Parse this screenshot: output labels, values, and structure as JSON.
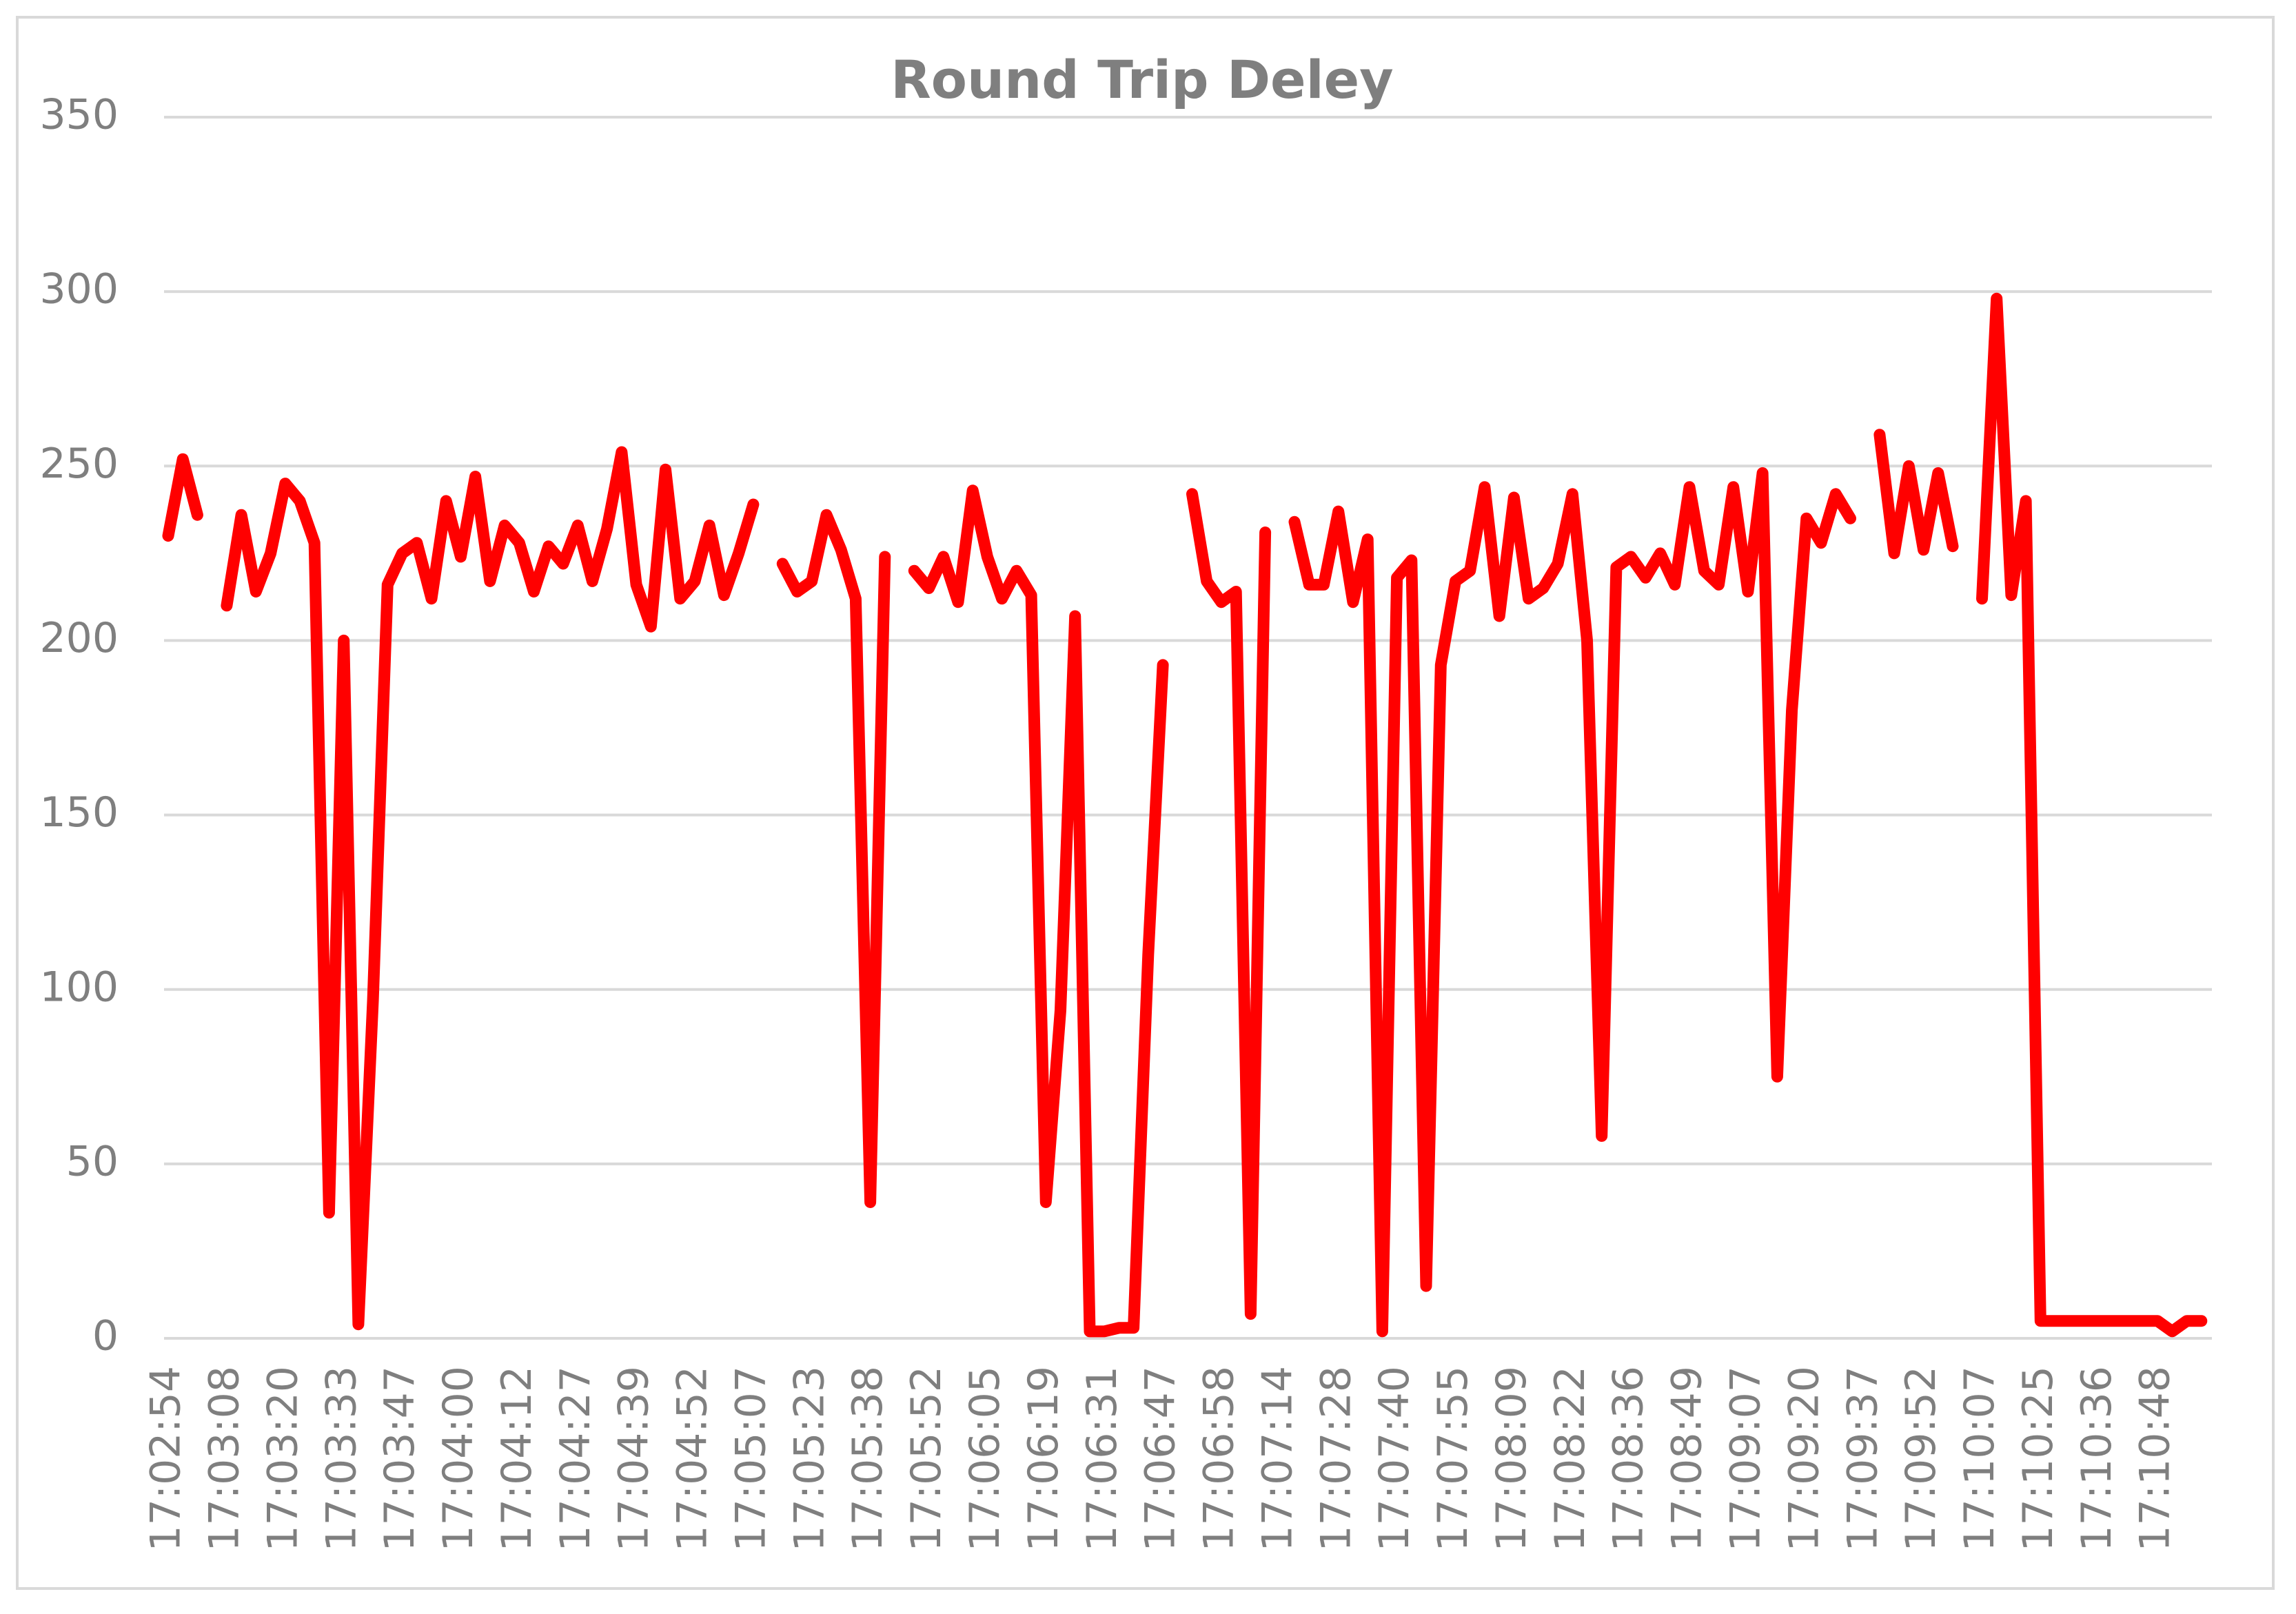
{
  "chart_data": {
    "type": "line",
    "title": "Round Trip Deley",
    "categories": [
      "17:02:54",
      null,
      null,
      null,
      "17:03:08",
      null,
      null,
      null,
      "17:03:20",
      null,
      null,
      null,
      "17:03:33",
      null,
      null,
      null,
      "17:03:47",
      null,
      null,
      null,
      "17:04:00",
      null,
      null,
      null,
      "17:04:12",
      null,
      null,
      null,
      "17:04:27",
      null,
      null,
      null,
      "17:04:39",
      null,
      null,
      null,
      "17:04:52",
      null,
      null,
      null,
      "17:05:07",
      null,
      null,
      null,
      "17:05:23",
      null,
      null,
      null,
      "17:05:38",
      null,
      null,
      null,
      "17:05:52",
      null,
      null,
      null,
      "17:06:05",
      null,
      null,
      null,
      "17:06:19",
      null,
      null,
      null,
      "17:06:31",
      null,
      null,
      null,
      "17:06:47",
      null,
      null,
      null,
      "17:06:58",
      null,
      null,
      null,
      "17:07:14",
      null,
      null,
      null,
      "17:07:28",
      null,
      null,
      null,
      "17:07:40",
      null,
      null,
      null,
      "17:07:55",
      null,
      null,
      null,
      "17:08:09",
      null,
      null,
      null,
      "17:08:22",
      null,
      null,
      null,
      "17:08:36",
      null,
      null,
      null,
      "17:08:49",
      null,
      null,
      null,
      "17:09:07",
      null,
      null,
      null,
      "17:09:20",
      null,
      null,
      null,
      "17:09:37",
      null,
      null,
      null,
      "17:09:52",
      null,
      null,
      null,
      "17:10:07",
      null,
      null,
      null,
      "17:10:25",
      null,
      null,
      null,
      "17:10:36",
      null,
      null,
      null,
      "17:10:48",
      null,
      null,
      null
    ],
    "values": [
      230,
      252,
      236,
      null,
      210,
      236,
      214,
      225,
      245,
      240,
      228,
      36,
      200,
      4,
      97,
      216,
      225,
      228,
      212,
      240,
      224,
      247,
      217,
      233,
      228,
      214,
      227,
      222,
      233,
      217,
      232,
      254,
      216,
      204,
      249,
      212,
      217,
      233,
      213,
      225,
      239,
      null,
      222,
      214,
      217,
      236,
      226,
      212,
      39,
      224,
      null,
      220,
      215,
      224,
      211,
      243,
      224,
      212,
      220,
      213,
      39,
      94,
      207,
      2,
      2,
      3,
      3,
      110,
      193,
      null,
      242,
      217,
      211,
      214,
      7,
      231,
      null,
      234,
      216,
      216,
      237,
      211,
      229,
      2,
      218,
      223,
      15,
      193,
      217,
      220,
      244,
      207,
      241,
      212,
      215,
      222,
      242,
      200,
      58,
      221,
      224,
      218,
      225,
      216,
      244,
      220,
      216,
      244,
      214,
      248,
      75,
      180,
      235,
      228,
      242,
      235,
      null,
      259,
      225,
      250,
      226,
      248,
      227,
      null,
      212,
      298,
      213,
      240,
      5,
      5,
      5,
      5,
      5,
      5,
      5,
      5,
      5,
      2,
      5,
      5
    ],
    "color": "#ff0000",
    "ylim": [
      0,
      350
    ],
    "yticks": [
      0,
      50,
      100,
      150,
      200,
      250,
      300,
      350
    ],
    "grid": true
  }
}
